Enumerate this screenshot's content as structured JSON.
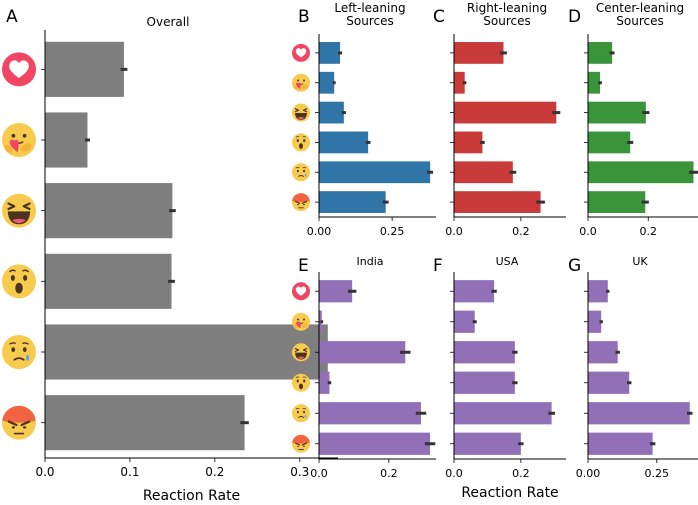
{
  "colors": {
    "overall": "#7f7f7f",
    "left": "#2f75a8",
    "right": "#c93a3a",
    "center": "#3a953a",
    "country": "#9270b8",
    "error": "#333333",
    "love_icon": "#f04563",
    "emoji_face": "#f7cb4d",
    "angry_face": "#f26341"
  },
  "reactions": [
    "love",
    "care",
    "haha",
    "wow",
    "sad",
    "angry"
  ],
  "figure": {
    "shared_xlabel": "Reaction Rate"
  },
  "chart_data": [
    {
      "id": "A",
      "type": "bar",
      "orientation": "horizontal",
      "letter": "A",
      "title": "Overall",
      "xlabel": "Reaction Rate",
      "xlim": [
        0,
        0.345
      ],
      "xticks": [
        "0.0",
        "0.1",
        "0.2",
        "0.3"
      ],
      "categories": [
        "love",
        "care",
        "haha",
        "wow",
        "sad",
        "angry"
      ],
      "values": [
        0.093,
        0.05,
        0.15,
        0.149,
        0.333,
        0.235
      ],
      "errors": [
        0.004,
        0.003,
        0.004,
        0.004,
        0.005,
        0.005
      ],
      "color_key": "overall"
    },
    {
      "id": "B",
      "type": "bar",
      "orientation": "horizontal",
      "letter": "B",
      "title": "Left-leaning\nSources",
      "xlabel": "",
      "xlim": [
        0,
        0.4
      ],
      "xticks": [
        "0.00",
        "0.25"
      ],
      "categories": [
        "love",
        "care",
        "haha",
        "wow",
        "sad",
        "angry"
      ],
      "values": [
        0.072,
        0.052,
        0.085,
        0.168,
        0.38,
        0.228
      ],
      "errors": [
        0.007,
        0.005,
        0.007,
        0.008,
        0.01,
        0.01
      ],
      "color_key": "left"
    },
    {
      "id": "C",
      "type": "bar",
      "orientation": "horizontal",
      "letter": "C",
      "title": "Right-leaning\nSources",
      "xlabel": "",
      "xlim": [
        0,
        0.335
      ],
      "xticks": [
        "0.0",
        "0.2"
      ],
      "categories": [
        "love",
        "care",
        "haha",
        "wow",
        "sad",
        "angry"
      ],
      "values": [
        0.148,
        0.032,
        0.306,
        0.085,
        0.176,
        0.259
      ],
      "errors": [
        0.01,
        0.005,
        0.012,
        0.007,
        0.01,
        0.013
      ],
      "color_key": "right"
    },
    {
      "id": "D",
      "type": "bar",
      "orientation": "horizontal",
      "letter": "D",
      "title": "Center-leaning\nSources",
      "xlabel": "",
      "xlim": [
        0,
        0.365
      ],
      "xticks": [
        "0.0",
        "0.2"
      ],
      "categories": [
        "love",
        "care",
        "haha",
        "wow",
        "sad",
        "angry"
      ],
      "values": [
        0.08,
        0.04,
        0.192,
        0.14,
        0.35,
        0.19
      ],
      "errors": [
        0.008,
        0.006,
        0.012,
        0.01,
        0.015,
        0.012
      ],
      "color_key": "center"
    },
    {
      "id": "E",
      "type": "bar",
      "orientation": "horizontal",
      "letter": "E",
      "title": "India",
      "xlabel": "",
      "xlim": [
        0,
        0.335
      ],
      "xticks": [
        "0.0",
        "0.2"
      ],
      "categories": [
        "love",
        "care",
        "haha",
        "wow",
        "sad",
        "angry"
      ],
      "values": [
        0.095,
        0.008,
        0.247,
        0.03,
        0.292,
        0.318
      ],
      "errors": [
        0.012,
        0.004,
        0.015,
        0.005,
        0.015,
        0.015
      ],
      "color_key": "country"
    },
    {
      "id": "F",
      "type": "bar",
      "orientation": "horizontal",
      "letter": "F",
      "title": "USA",
      "xlabel": "Reaction Rate",
      "xlim": [
        0,
        0.335
      ],
      "xticks": [
        "0.0",
        "0.2"
      ],
      "categories": [
        "love",
        "care",
        "haha",
        "wow",
        "sad",
        "angry"
      ],
      "values": [
        0.12,
        0.062,
        0.182,
        0.182,
        0.292,
        0.2
      ],
      "errors": [
        0.008,
        0.006,
        0.008,
        0.008,
        0.01,
        0.008
      ],
      "color_key": "country"
    },
    {
      "id": "G",
      "type": "bar",
      "orientation": "horizontal",
      "letter": "G",
      "title": "UK",
      "xlabel": "",
      "xlim": [
        0,
        0.4
      ],
      "xticks": [
        "0.00",
        "0.25"
      ],
      "categories": [
        "love",
        "care",
        "haha",
        "wow",
        "sad",
        "angry"
      ],
      "values": [
        0.072,
        0.048,
        0.108,
        0.15,
        0.37,
        0.235
      ],
      "errors": [
        0.006,
        0.006,
        0.008,
        0.008,
        0.01,
        0.01
      ],
      "color_key": "country"
    }
  ]
}
